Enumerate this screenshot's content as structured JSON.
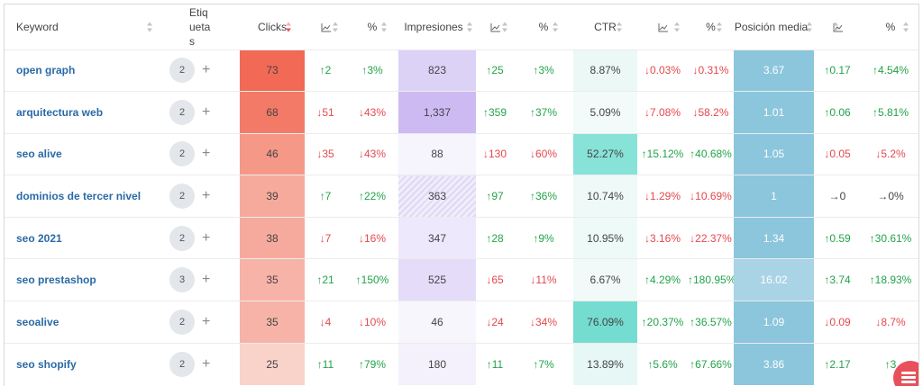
{
  "headers": {
    "keyword": "Keyword",
    "tags": "Etiquetas",
    "clicks": "Clicks",
    "pct": "%",
    "impressions": "Impresiones",
    "ctr": "CTR",
    "position": "Posición media"
  },
  "rows": [
    {
      "keyword": "open graph",
      "tags": "2",
      "clicks": "73",
      "clicks_delta": "↑2",
      "clicks_delta_dir": "up",
      "clicks_pct": "↑3%",
      "clicks_pct_dir": "up",
      "impressions": "823",
      "impr_delta": "↑25",
      "impr_delta_dir": "up",
      "impr_pct": "↑3%",
      "impr_pct_dir": "up",
      "ctr": "8.87%",
      "ctr_delta": "↓0.03%",
      "ctr_delta_dir": "down",
      "ctr_pct": "↓0.31%",
      "ctr_pct_dir": "down",
      "position": "3.67",
      "pos_delta": "↑0.17",
      "pos_delta_dir": "up",
      "pos_pct": "↑4.54%",
      "pos_pct_dir": "up"
    },
    {
      "keyword": "arquitectura web",
      "tags": "2",
      "clicks": "68",
      "clicks_delta": "↓51",
      "clicks_delta_dir": "down",
      "clicks_pct": "↓43%",
      "clicks_pct_dir": "down",
      "impressions": "1,337",
      "impr_delta": "↑359",
      "impr_delta_dir": "up",
      "impr_pct": "↑37%",
      "impr_pct_dir": "up",
      "ctr": "5.09%",
      "ctr_delta": "↓7.08%",
      "ctr_delta_dir": "down",
      "ctr_pct": "↓58.2%",
      "ctr_pct_dir": "down",
      "position": "1.01",
      "pos_delta": "↑0.06",
      "pos_delta_dir": "up",
      "pos_pct": "↑5.81%",
      "pos_pct_dir": "up"
    },
    {
      "keyword": "seo alive",
      "tags": "2",
      "clicks": "46",
      "clicks_delta": "↓35",
      "clicks_delta_dir": "down",
      "clicks_pct": "↓43%",
      "clicks_pct_dir": "down",
      "impressions": "88",
      "impr_delta": "↓130",
      "impr_delta_dir": "down",
      "impr_pct": "↓60%",
      "impr_pct_dir": "down",
      "ctr": "52.27%",
      "ctr_delta": "↑15.12%",
      "ctr_delta_dir": "up",
      "ctr_pct": "↑40.68%",
      "ctr_pct_dir": "up",
      "position": "1.05",
      "pos_delta": "↓0.05",
      "pos_delta_dir": "down",
      "pos_pct": "↓5.2%",
      "pos_pct_dir": "down"
    },
    {
      "keyword": "dominios de tercer nivel",
      "tags": "2",
      "clicks": "39",
      "clicks_delta": "↑7",
      "clicks_delta_dir": "up",
      "clicks_pct": "↑22%",
      "clicks_pct_dir": "up",
      "impressions": "363",
      "impr_delta": "↑97",
      "impr_delta_dir": "up",
      "impr_pct": "↑36%",
      "impr_pct_dir": "up",
      "ctr": "10.74%",
      "ctr_delta": "↓1.29%",
      "ctr_delta_dir": "down",
      "ctr_pct": "↓10.69%",
      "ctr_pct_dir": "down",
      "position": "1",
      "pos_delta": "→0",
      "pos_delta_dir": "neutral",
      "pos_pct": "→0%",
      "pos_pct_dir": "neutral"
    },
    {
      "keyword": "seo 2021",
      "tags": "2",
      "clicks": "38",
      "clicks_delta": "↓7",
      "clicks_delta_dir": "down",
      "clicks_pct": "↓16%",
      "clicks_pct_dir": "down",
      "impressions": "347",
      "impr_delta": "↑28",
      "impr_delta_dir": "up",
      "impr_pct": "↑9%",
      "impr_pct_dir": "up",
      "ctr": "10.95%",
      "ctr_delta": "↓3.16%",
      "ctr_delta_dir": "down",
      "ctr_pct": "↓22.37%",
      "ctr_pct_dir": "down",
      "position": "1.34",
      "pos_delta": "↑0.59",
      "pos_delta_dir": "up",
      "pos_pct": "↑30.61%",
      "pos_pct_dir": "up"
    },
    {
      "keyword": "seo prestashop",
      "tags": "3",
      "clicks": "35",
      "clicks_delta": "↑21",
      "clicks_delta_dir": "up",
      "clicks_pct": "↑150%",
      "clicks_pct_dir": "up",
      "impressions": "525",
      "impr_delta": "↓65",
      "impr_delta_dir": "down",
      "impr_pct": "↓11%",
      "impr_pct_dir": "down",
      "ctr": "6.67%",
      "ctr_delta": "↑4.29%",
      "ctr_delta_dir": "up",
      "ctr_pct": "↑180.95%",
      "ctr_pct_dir": "up",
      "position": "16.02",
      "pos_delta": "↑3.74",
      "pos_delta_dir": "up",
      "pos_pct": "↑18.93%",
      "pos_pct_dir": "up"
    },
    {
      "keyword": "seoalive",
      "tags": "2",
      "clicks": "35",
      "clicks_delta": "↓4",
      "clicks_delta_dir": "down",
      "clicks_pct": "↓10%",
      "clicks_pct_dir": "down",
      "impressions": "46",
      "impr_delta": "↓24",
      "impr_delta_dir": "down",
      "impr_pct": "↓34%",
      "impr_pct_dir": "down",
      "ctr": "76.09%",
      "ctr_delta": "↑20.37%",
      "ctr_delta_dir": "up",
      "ctr_pct": "↑36.57%",
      "ctr_pct_dir": "up",
      "position": "1.09",
      "pos_delta": "↓0.09",
      "pos_delta_dir": "down",
      "pos_pct": "↓8.7%",
      "pos_pct_dir": "down"
    },
    {
      "keyword": "seo shopify",
      "tags": "2",
      "clicks": "25",
      "clicks_delta": "↑11",
      "clicks_delta_dir": "up",
      "clicks_pct": "↑79%",
      "clicks_pct_dir": "up",
      "impressions": "180",
      "impr_delta": "↑11",
      "impr_delta_dir": "up",
      "impr_pct": "↑7%",
      "impr_pct_dir": "up",
      "ctr": "13.89%",
      "ctr_delta": "↑5.6%",
      "ctr_delta_dir": "up",
      "ctr_pct": "↑67.66%",
      "ctr_pct_dir": "up",
      "position": "3.86",
      "pos_delta": "↑2.17",
      "pos_delta_dir": "up",
      "pos_pct": "↑3",
      "pos_pct_dir": "up"
    }
  ],
  "colors": {
    "clicks": [
      "#f26a55",
      "#f47a68",
      "#f59888",
      "#f6aa9c",
      "#f6aa9d",
      "#f7b3a7",
      "#f7b3a7",
      "#f9d2ca"
    ],
    "impressions": [
      "#dcd2f6",
      "#cdbaf3",
      "#f6f4fd",
      "#f1edfb",
      "#ede8fb",
      "#e4dcf8",
      "#f7f6fd",
      "#f4f1fc"
    ],
    "ctr": [
      "#ebf8f6",
      "#f3fbfa",
      "#87e2d8",
      "#eff9f8",
      "#eefaf8",
      "#f1faf9",
      "#74dcd1",
      "#e7f7f5"
    ],
    "position": [
      "#8bc6dc",
      "#8bc6dc",
      "#8bc6dc",
      "#8bc6dc",
      "#8bc6dc",
      "#a9d4e5",
      "#8bc6dc",
      "#8bc6dc"
    ],
    "impressions_hatched": [
      false,
      false,
      false,
      true,
      false,
      false,
      false,
      false
    ]
  },
  "icons": {
    "chart": "line-chart-icon",
    "sort": "sort-icon",
    "add": "plus-icon",
    "fab": "menu-icon"
  }
}
